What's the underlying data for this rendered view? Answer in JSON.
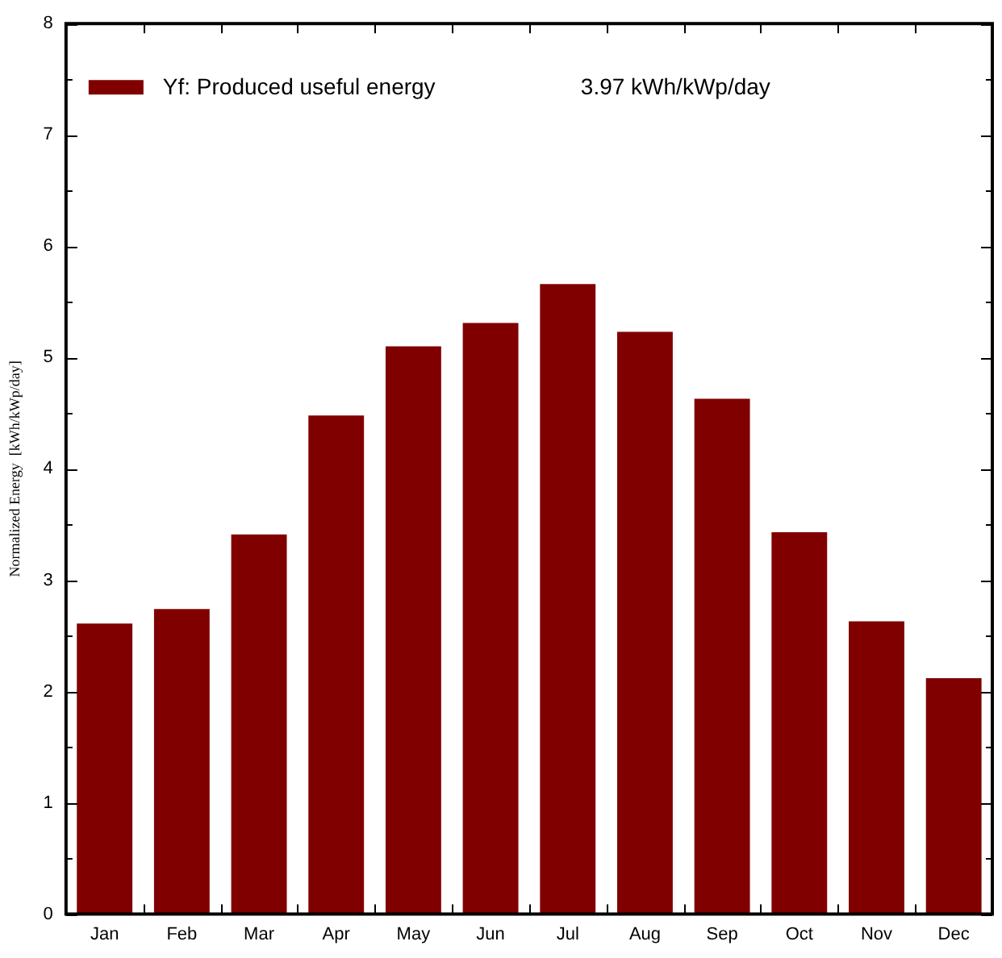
{
  "chart_data": {
    "type": "bar",
    "ylabel": "Normalized Energy  [kWh/kWp/day]",
    "categories": [
      "Jan",
      "Feb",
      "Mar",
      "Apr",
      "May",
      "Jun",
      "Jul",
      "Aug",
      "Sep",
      "Oct",
      "Nov",
      "Dec"
    ],
    "series": [
      {
        "name": "Yf: Produced useful energy",
        "color": "#800000",
        "values": [
          2.61,
          2.74,
          3.41,
          4.48,
          5.1,
          5.31,
          5.66,
          5.23,
          4.63,
          3.43,
          2.63,
          2.12
        ]
      }
    ],
    "annotations": [
      "3.97 kWh/kWp/day"
    ],
    "ylim": [
      0,
      8
    ],
    "yticks": [
      0,
      {
        "value": 0.5,
        "label": null
      },
      1,
      {
        "value": 1.5,
        "label": null
      },
      2,
      {
        "value": 2.5,
        "label": null
      },
      3,
      {
        "value": 3.5,
        "label": null
      },
      4,
      {
        "value": 4.5,
        "label": null
      },
      5,
      {
        "value": 5.5,
        "label": null
      },
      6,
      {
        "value": 6.5,
        "label": null
      },
      7,
      {
        "value": 7.5,
        "label": null
      },
      8
    ],
    "legend": "top left",
    "grid": false
  }
}
